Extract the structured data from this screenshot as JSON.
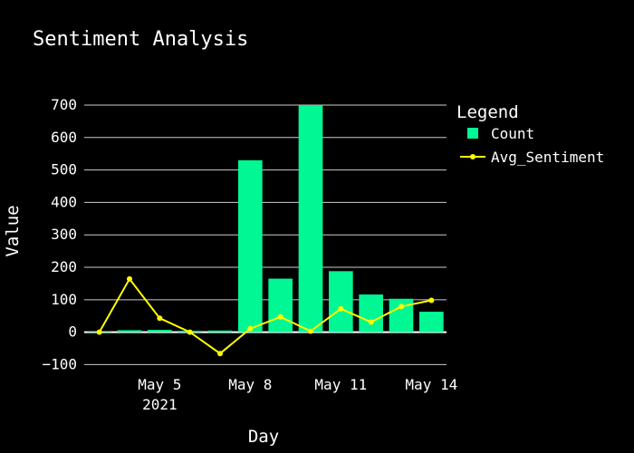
{
  "colors": {
    "background": "#000000",
    "bar": "#00f794",
    "line": "#ffff00",
    "grid": "#cccccc",
    "text": "#ffffff"
  },
  "chart_data": {
    "type": "bar",
    "title": "Sentiment Analysis",
    "xlabel": "Day",
    "ylabel": "Value",
    "legend_title": "Legend",
    "legend_position": "right",
    "grid": true,
    "x": [
      "2021-05-03",
      "2021-05-04",
      "2021-05-05",
      "2021-05-06",
      "2021-05-07",
      "2021-05-08",
      "2021-05-09",
      "2021-05-10",
      "2021-05-11",
      "2021-05-12",
      "2021-05-13",
      "2021-05-14"
    ],
    "xlim": [
      "2021-05-02T12:00",
      "2021-05-14T12:00"
    ],
    "x_ticks": [
      {
        "date": "2021-05-05",
        "label": "May 5",
        "sublabel": "2021"
      },
      {
        "date": "2021-05-08",
        "label": "May 8",
        "sublabel": ""
      },
      {
        "date": "2021-05-11",
        "label": "May 11",
        "sublabel": ""
      },
      {
        "date": "2021-05-14",
        "label": "May 14",
        "sublabel": ""
      }
    ],
    "ylim": [
      -110,
      700
    ],
    "y_ticks": [
      -100,
      0,
      100,
      200,
      300,
      400,
      500,
      600,
      700
    ],
    "y_tick_labels": [
      "−100",
      "0",
      "100",
      "200",
      "300",
      "400",
      "500",
      "600",
      "700"
    ],
    "series": [
      {
        "name": "Count",
        "type": "bar",
        "values": [
          1,
          6,
          7,
          4,
          5,
          530,
          165,
          700,
          188,
          116,
          103,
          63
        ]
      },
      {
        "name": "Avg_Sentiment",
        "type": "line",
        "values": [
          0,
          164,
          43,
          0,
          -66,
          11,
          47,
          3,
          72,
          31,
          79,
          98
        ]
      }
    ]
  }
}
